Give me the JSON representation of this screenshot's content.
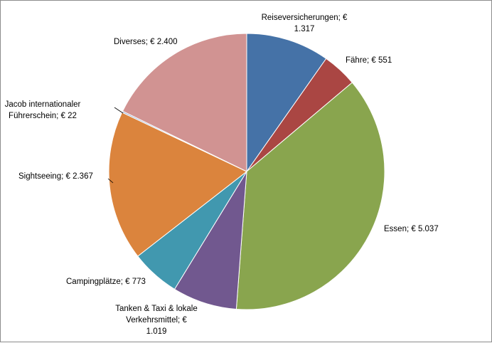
{
  "chart_data": {
    "type": "pie",
    "currency_symbol": "€",
    "slices": [
      {
        "name": "Reiseversicherungen",
        "value": 1317,
        "label_lines": [
          "Reiseversicherungen;  €",
          "1.317"
        ],
        "color": "#4572a7"
      },
      {
        "name": "Fähre",
        "value": 551,
        "label_lines": [
          "Fähre;  € 551"
        ],
        "color": "#aa4643"
      },
      {
        "name": "Essen",
        "value": 5037,
        "label_lines": [
          "Essen;  € 5.037"
        ],
        "color": "#89a54e"
      },
      {
        "name": "Tanken & Taxi & lokale Verkehrsmittel",
        "value": 1019,
        "label_lines": [
          "Tanken & Taxi & lokale",
          "Verkehrsmittel;  €",
          "1.019"
        ],
        "color": "#71588f"
      },
      {
        "name": "Campingplätze",
        "value": 773,
        "label_lines": [
          "Campingplätze;  € 773"
        ],
        "color": "#4198af"
      },
      {
        "name": "Sightseeing",
        "value": 2367,
        "label_lines": [
          "Sightseeing;  € 2.367"
        ],
        "color": "#db843d"
      },
      {
        "name": "Jacob internationaler Führerschein",
        "value": 22,
        "label_lines": [
          "Jacob internationaler",
          "Führerschein;  € 22"
        ],
        "color": "#93a9cf"
      },
      {
        "name": "Diverses",
        "value": 2400,
        "label_lines": [
          "Diverses;  € 2.400"
        ],
        "color": "#d19392"
      }
    ],
    "start_angle_deg": 0,
    "direction": "clockwise",
    "legend": "none",
    "data_labels": "outside"
  }
}
